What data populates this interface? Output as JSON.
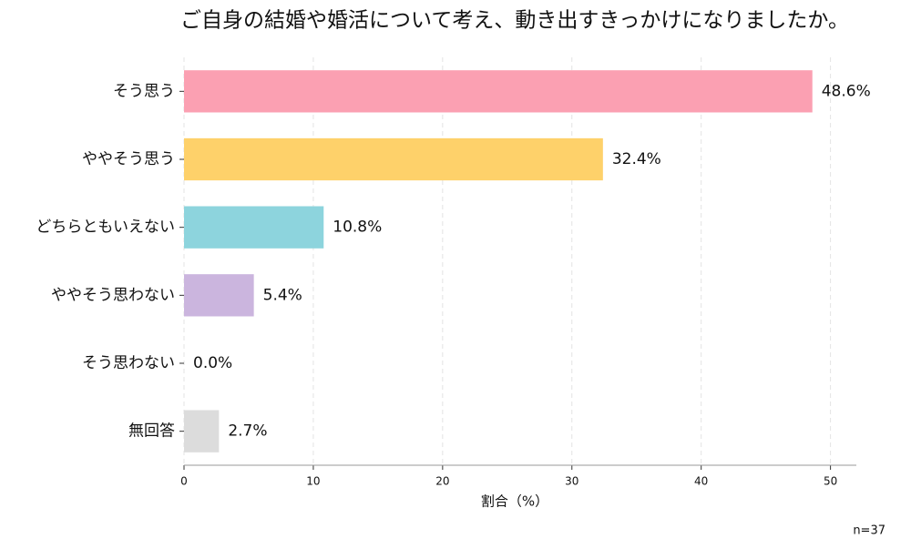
{
  "chart_data": {
    "type": "barh",
    "title": "ご自身の結婚や婚活について考え、動き出すきっかけになりましたか。",
    "x_label": "割合（%）",
    "annotation": "n=37",
    "categories": [
      "そう思う",
      "ややそう思う",
      "どちらともいえない",
      "ややそう思わない",
      "そう思わない",
      "無回答"
    ],
    "values": [
      48.6,
      32.4,
      10.8,
      5.4,
      0.0,
      2.7
    ],
    "value_labels": [
      "48.6%",
      "32.4%",
      "10.8%",
      "5.4%",
      "0.0%",
      "2.7%"
    ],
    "colors": [
      "#fba0b2",
      "#fed16a",
      "#8dd4dd",
      "#cbb5de",
      "#a8b8e0",
      "#dcdcdc"
    ],
    "xlim": [
      0,
      52
    ],
    "xticks": [
      0,
      10,
      20,
      30,
      40,
      50
    ],
    "grid": true
  }
}
